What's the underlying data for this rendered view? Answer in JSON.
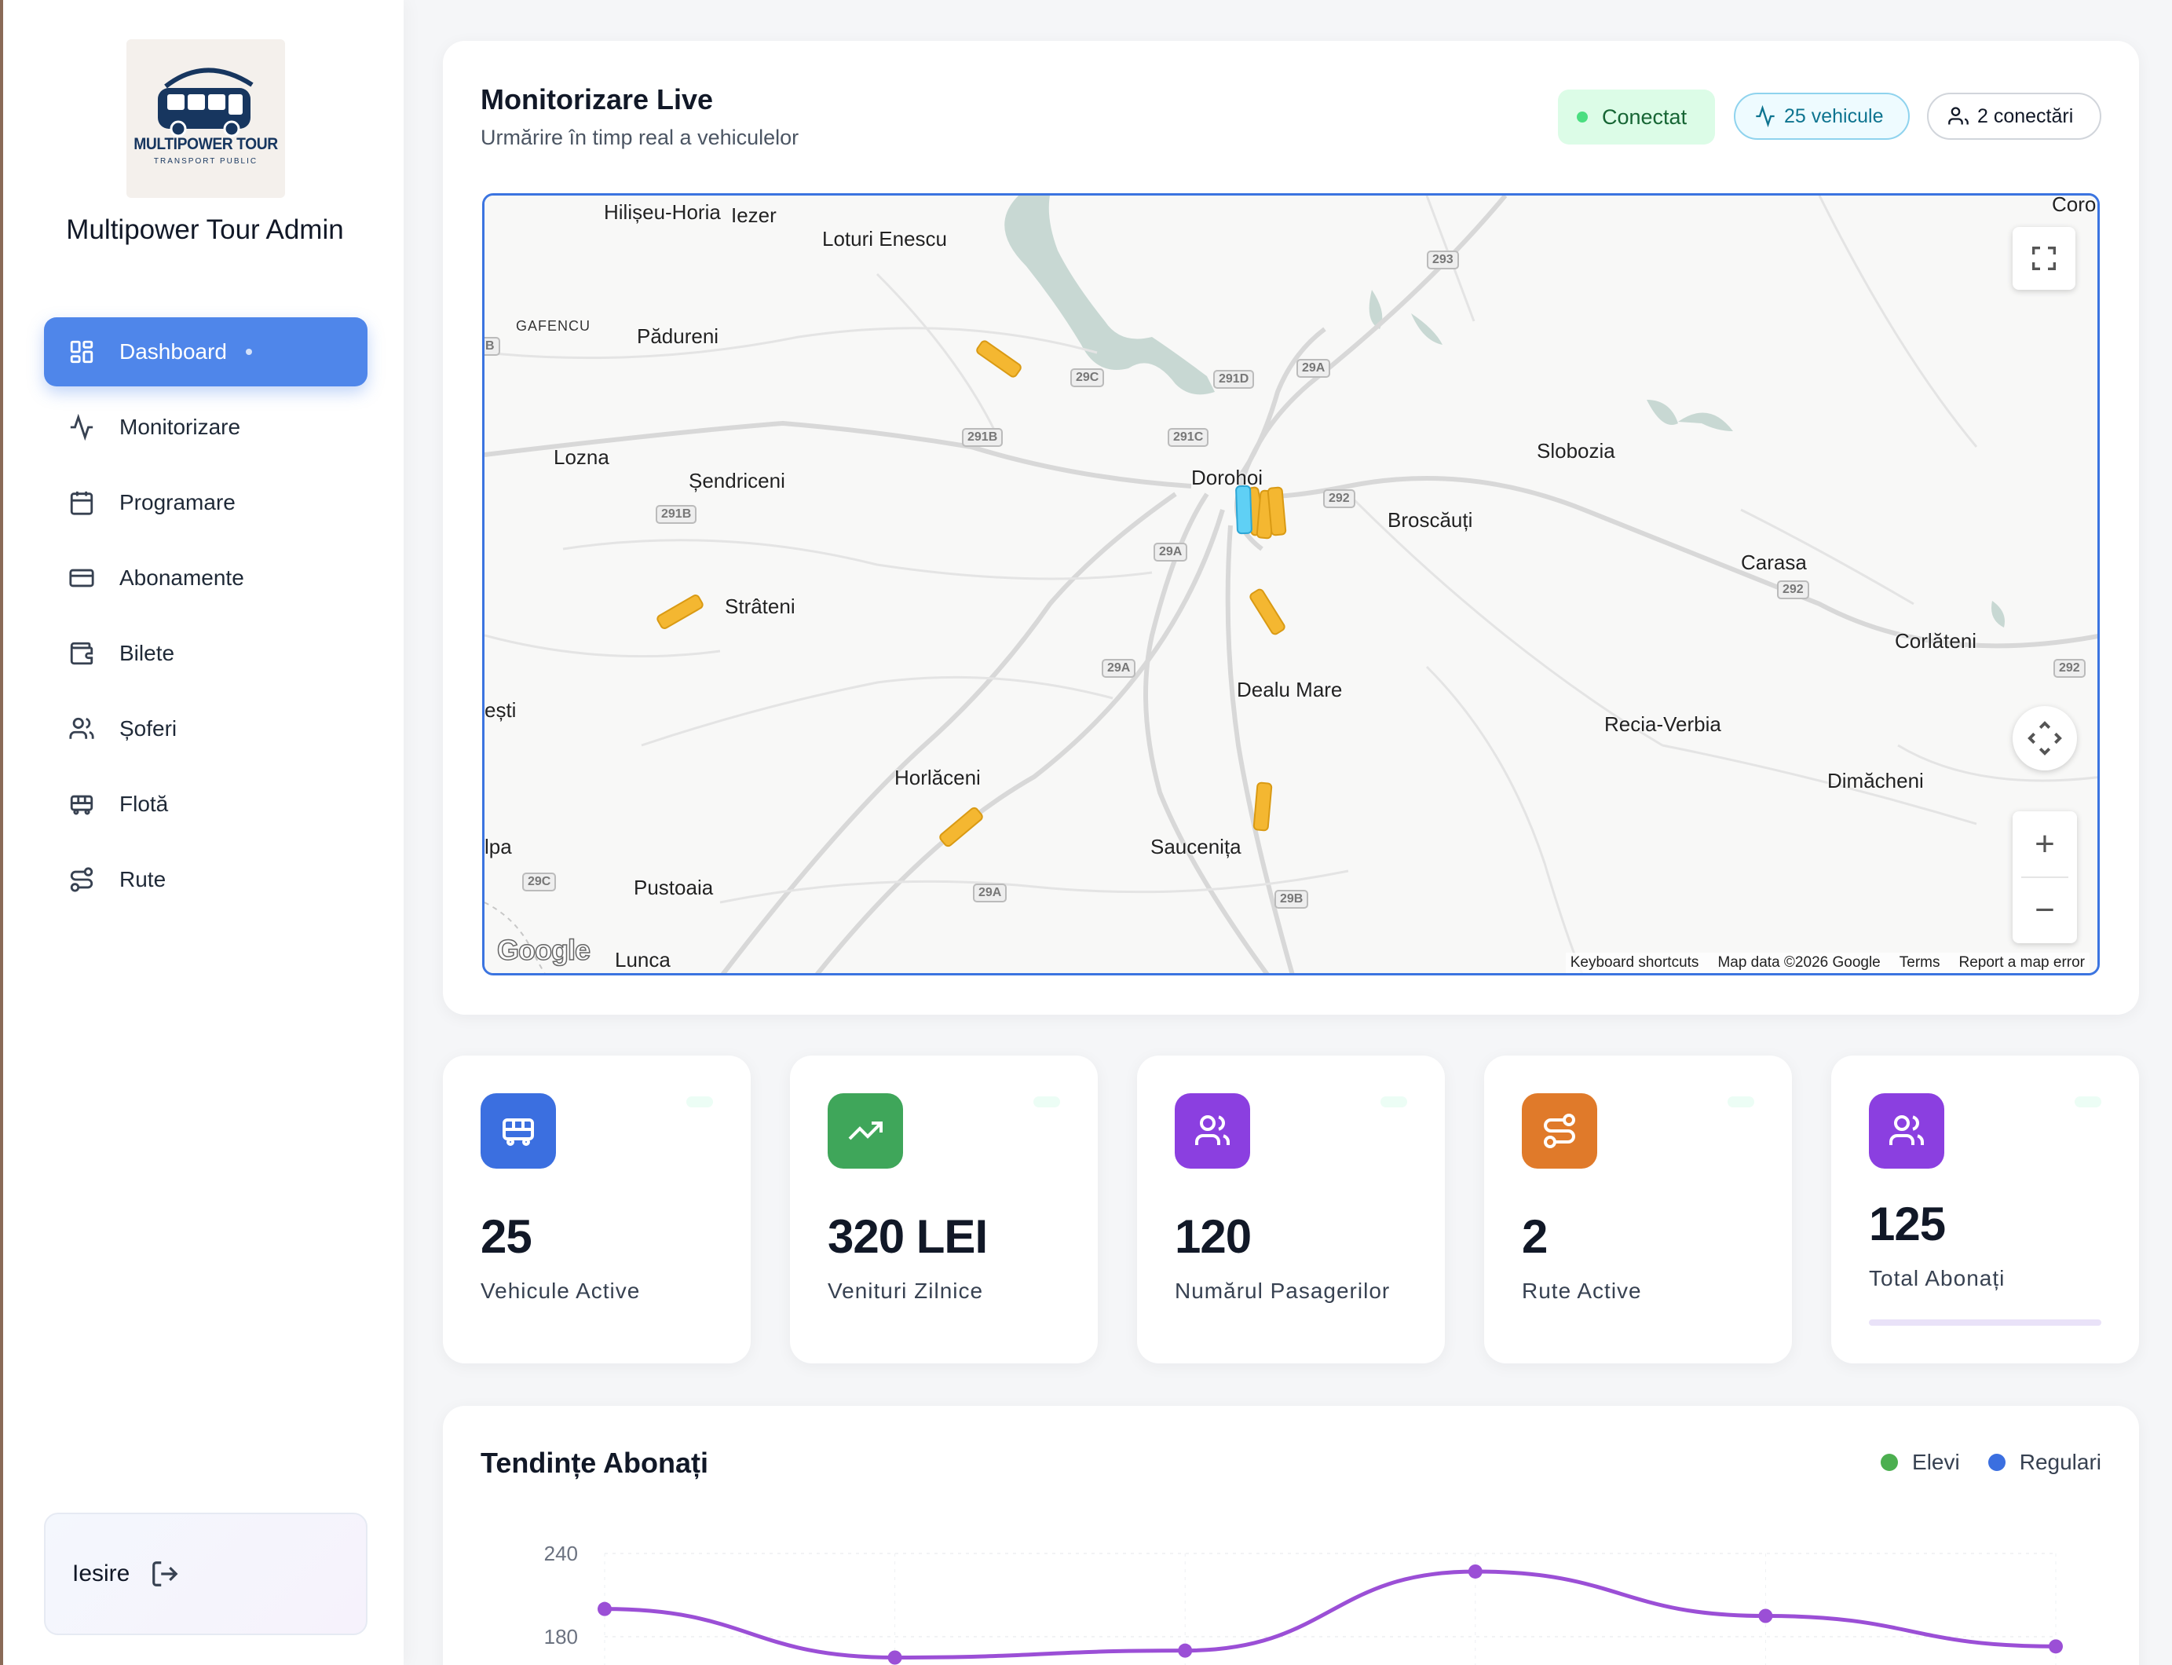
{
  "sidebar": {
    "logo": {
      "line1": "MULTIPOWER TOUR",
      "line2": "TRANSPORT PUBLIC"
    },
    "app_name": "Multipower Tour Admin",
    "items": [
      {
        "label": "Dashboard",
        "icon": "dashboard-icon",
        "active": true
      },
      {
        "label": "Monitorizare",
        "icon": "activity-icon"
      },
      {
        "label": "Programare",
        "icon": "calendar-icon"
      },
      {
        "label": "Abonamente",
        "icon": "card-icon"
      },
      {
        "label": "Bilete",
        "icon": "wallet-icon"
      },
      {
        "label": "Șoferi",
        "icon": "users-icon"
      },
      {
        "label": "Flotă",
        "icon": "bus-icon"
      },
      {
        "label": "Rute",
        "icon": "route-icon"
      }
    ],
    "logout_label": "Iesire"
  },
  "monitor": {
    "title": "Monitorizare Live",
    "subtitle": "Urmărire în timp real a vehiculelor",
    "status": "Conectat",
    "vehicles_badge": "25 vehicule",
    "connections_badge": "2 conectări",
    "status_color": "#4ade80"
  },
  "map": {
    "places": [
      {
        "name": "Hilișeu-Horia"
      },
      {
        "name": "Iezer"
      },
      {
        "name": "Loturi Enescu"
      },
      {
        "name": "GAFENCU"
      },
      {
        "name": "Pădureni"
      },
      {
        "name": "Lozna"
      },
      {
        "name": "Șendriceni"
      },
      {
        "name": "Dorohoi"
      },
      {
        "name": "Broscăuți"
      },
      {
        "name": "Slobozia"
      },
      {
        "name": "Carasa"
      },
      {
        "name": "Corlăteni"
      },
      {
        "name": "Strâteni"
      },
      {
        "name": "Dealu Mare"
      },
      {
        "name": "Recia-Verbia"
      },
      {
        "name": "Dimăcheni"
      },
      {
        "name": "Horlăceni"
      },
      {
        "name": "Saucenița"
      },
      {
        "name": "Pustoaia"
      },
      {
        "name": "Lunca"
      },
      {
        "name": "ești"
      },
      {
        "name": "lpa"
      },
      {
        "name": "Coro"
      }
    ],
    "roads": [
      "293",
      "291D",
      "29A",
      "291C",
      "291B",
      "291B",
      "292",
      "29A",
      "292",
      "292",
      "29A",
      "29C",
      "29A",
      "29B",
      "29C",
      "B"
    ],
    "attribution": [
      "Keyboard shortcuts",
      "Map data ©2026 Google",
      "Terms",
      "Report a map error"
    ],
    "provider": "Google",
    "zoom_in": "+",
    "zoom_out": "−"
  },
  "stats": [
    {
      "value": "25",
      "label": "Vehicule Active",
      "icon": "bus-icon",
      "color": "#3b6fe0"
    },
    {
      "value": "320 LEI",
      "label": "Venituri Zilnice",
      "icon": "trending-up-icon",
      "color": "#3fa65a"
    },
    {
      "value": "120",
      "label": "Numărul Pasagerilor",
      "icon": "users-icon",
      "color": "#8b3fe0"
    },
    {
      "value": "2",
      "label": "Rute Active",
      "icon": "route-icon",
      "color": "#e07a2a"
    },
    {
      "value": "125",
      "label": "Total Abonați",
      "icon": "users-icon",
      "color": "#8b3fe0"
    }
  ],
  "trend": {
    "title": "Tendințe Abonați",
    "legend": [
      {
        "name": "Elevi",
        "color": "#4caf50"
      },
      {
        "name": "Regulari",
        "color": "#3b6fe0"
      }
    ],
    "line_color": "#9b4fd6"
  },
  "chart_data": {
    "type": "line",
    "title": "Tendințe Abonați",
    "y_ticks": [
      240,
      180
    ],
    "ylim": [
      120,
      260
    ],
    "series": [
      {
        "name": "",
        "values": [
          200,
          165,
          170,
          227,
          195,
          173
        ]
      }
    ],
    "grid": true,
    "legend_position": "top-right"
  }
}
